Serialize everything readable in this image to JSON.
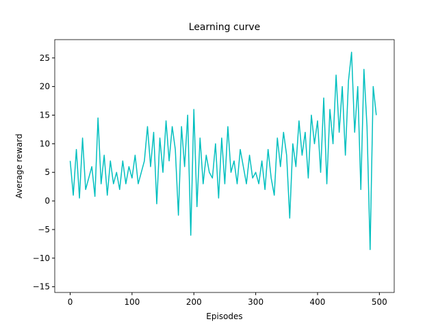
{
  "chart_data": {
    "type": "line",
    "title": "Learning curve",
    "x_label": "Episodes",
    "y_label": "Average reward",
    "x": [
      0,
      5,
      10,
      15,
      20,
      25,
      30,
      35,
      40,
      45,
      50,
      55,
      60,
      65,
      70,
      75,
      80,
      85,
      90,
      95,
      100,
      105,
      110,
      115,
      120,
      125,
      130,
      135,
      140,
      145,
      150,
      155,
      160,
      165,
      170,
      175,
      180,
      185,
      190,
      195,
      200,
      205,
      210,
      215,
      220,
      225,
      230,
      235,
      240,
      245,
      250,
      255,
      260,
      265,
      270,
      275,
      280,
      285,
      290,
      295,
      300,
      305,
      310,
      315,
      320,
      325,
      330,
      335,
      340,
      345,
      350,
      355,
      360,
      365,
      370,
      375,
      380,
      385,
      390,
      395,
      400,
      405,
      410,
      415,
      420,
      425,
      430,
      435,
      440,
      445,
      450,
      455,
      460,
      465,
      470,
      475,
      480,
      485,
      490,
      495
    ],
    "series": [
      {
        "name": "Average reward",
        "color": "#00bfbf",
        "values": [
          7,
          1,
          9,
          0.5,
          11,
          2,
          4,
          6,
          0.8,
          14.5,
          3,
          8,
          1,
          7,
          3,
          5,
          2,
          7,
          3,
          6,
          4,
          8,
          3,
          5,
          7,
          13,
          6,
          12,
          -0.5,
          11,
          5,
          14,
          7,
          13,
          9,
          -2.5,
          13,
          6,
          15,
          -6,
          16,
          -1,
          11,
          3,
          8,
          5,
          4,
          10,
          0.5,
          11,
          3,
          13,
          5,
          7,
          3,
          9,
          6,
          3,
          8,
          4,
          5,
          3,
          7,
          2,
          9,
          4,
          1,
          11,
          6,
          12,
          8,
          -3,
          10,
          6,
          14,
          8,
          12,
          4,
          15,
          10,
          14,
          5,
          18,
          3,
          16,
          10,
          22,
          12,
          20,
          8,
          21,
          26,
          12,
          20,
          2,
          23,
          13,
          -8.5,
          20,
          15
        ]
      }
    ],
    "xlim": [
      -24.95,
      523.95
    ],
    "ylim": [
      -16,
      28.2
    ],
    "xticks": [
      0,
      100,
      200,
      300,
      400,
      500
    ],
    "yticks": [
      {
        "value": -15,
        "label": "−15"
      },
      {
        "value": -10,
        "label": "−10"
      },
      {
        "value": -5,
        "label": "−5"
      },
      0,
      5,
      10,
      15,
      20,
      25
    ]
  }
}
